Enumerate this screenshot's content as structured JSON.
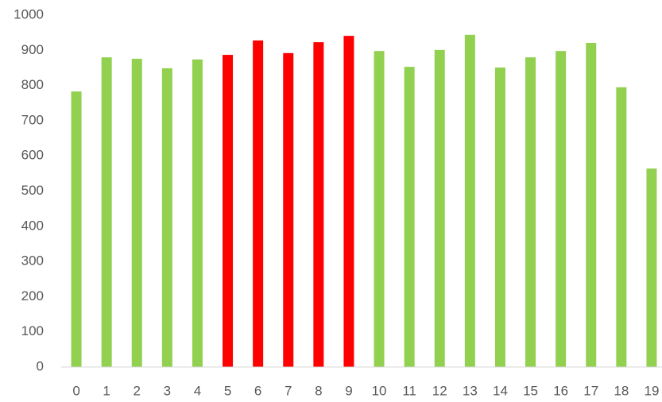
{
  "chart_data": {
    "type": "bar",
    "categories": [
      "0",
      "1",
      "2",
      "3",
      "4",
      "5",
      "6",
      "7",
      "8",
      "9",
      "10",
      "11",
      "12",
      "13",
      "14",
      "15",
      "16",
      "17",
      "18",
      "19"
    ],
    "values": [
      783,
      880,
      876,
      849,
      874,
      887,
      928,
      892,
      923,
      941,
      898,
      853,
      901,
      944,
      851,
      880,
      898,
      921,
      795,
      564
    ],
    "colors": [
      "#92d050",
      "#92d050",
      "#92d050",
      "#92d050",
      "#92d050",
      "#ff0000",
      "#ff0000",
      "#ff0000",
      "#ff0000",
      "#ff0000",
      "#92d050",
      "#92d050",
      "#92d050",
      "#92d050",
      "#92d050",
      "#92d050",
      "#92d050",
      "#92d050",
      "#92d050",
      "#92d050"
    ],
    "ylim": [
      0,
      1000
    ],
    "yticks": [
      0,
      100,
      200,
      300,
      400,
      500,
      600,
      700,
      800,
      900,
      1000
    ],
    "grid": false
  }
}
